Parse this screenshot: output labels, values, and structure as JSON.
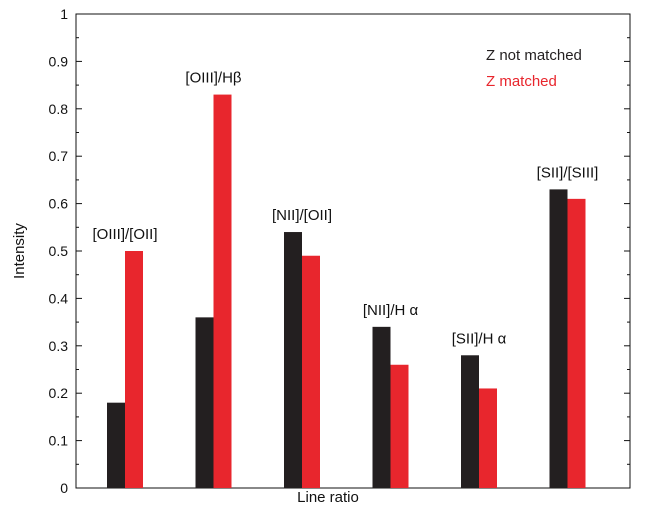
{
  "chart_data": {
    "type": "bar",
    "title": "",
    "xlabel": "Line ratio",
    "ylabel": "Intensity",
    "ylim": [
      0,
      1
    ],
    "yticks": [
      "0",
      "0.1",
      "0.2",
      "0.3",
      "0.4",
      "0.5",
      "0.6",
      "0.7",
      "0.8",
      "0.9",
      "1"
    ],
    "grid": false,
    "legend_position": "top-right",
    "categories": [
      "[OIII]/[OII]",
      "[OIII]/Hβ",
      "[NII]/[OII]",
      "[NII]/H α",
      "[SII]/H α",
      "[SII]/[SIII]"
    ],
    "series": [
      {
        "name": "Z not matched",
        "color": "#231f20",
        "values": [
          0.18,
          0.36,
          0.54,
          0.34,
          0.28,
          0.63
        ]
      },
      {
        "name": "Z  matched",
        "color": "#e8262d",
        "values": [
          0.5,
          0.83,
          0.49,
          0.26,
          0.21,
          0.61
        ]
      }
    ]
  }
}
